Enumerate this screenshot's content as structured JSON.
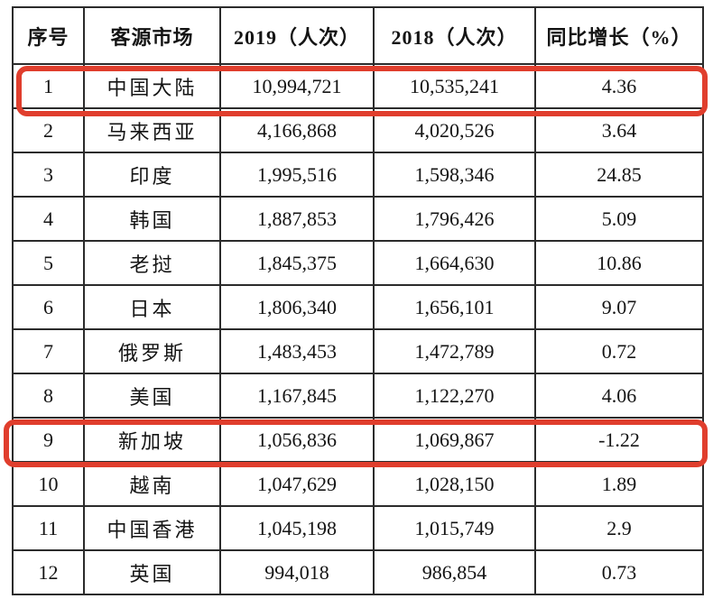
{
  "table": {
    "headers": [
      "序号",
      "客源市场",
      "2019（人次）",
      "2018（人次）",
      "同比增长（%）"
    ],
    "rows": [
      {
        "no": "1",
        "market": "中国大陆",
        "y2019": "10,994,721",
        "y2018": "10,535,241",
        "growth": "4.36",
        "highlighted": true
      },
      {
        "no": "2",
        "market": "马来西亚",
        "y2019": "4,166,868",
        "y2018": "4,020,526",
        "growth": "3.64",
        "highlighted": false
      },
      {
        "no": "3",
        "market": "印度",
        "y2019": "1,995,516",
        "y2018": "1,598,346",
        "growth": "24.85",
        "highlighted": false
      },
      {
        "no": "4",
        "market": "韩国",
        "y2019": "1,887,853",
        "y2018": "1,796,426",
        "growth": "5.09",
        "highlighted": false
      },
      {
        "no": "5",
        "market": "老挝",
        "y2019": "1,845,375",
        "y2018": "1,664,630",
        "growth": "10.86",
        "highlighted": false
      },
      {
        "no": "6",
        "market": "日本",
        "y2019": "1,806,340",
        "y2018": "1,656,101",
        "growth": "9.07",
        "highlighted": false
      },
      {
        "no": "7",
        "market": "俄罗斯",
        "y2019": "1,483,453",
        "y2018": "1,472,789",
        "growth": "0.72",
        "highlighted": false
      },
      {
        "no": "8",
        "market": "美国",
        "y2019": "1,167,845",
        "y2018": "1,122,270",
        "growth": "4.06",
        "highlighted": false
      },
      {
        "no": "9",
        "market": "新加坡",
        "y2019": "1,056,836",
        "y2018": "1,069,867",
        "growth": "-1.22",
        "highlighted": true
      },
      {
        "no": "10",
        "market": "越南",
        "y2019": "1,047,629",
        "y2018": "1,028,150",
        "growth": "1.89",
        "highlighted": false
      },
      {
        "no": "11",
        "market": "中国香港",
        "y2019": "1,045,198",
        "y2018": "1,015,749",
        "growth": "2.9",
        "highlighted": false
      },
      {
        "no": "12",
        "market": "英国",
        "y2019": "994,018",
        "y2018": "986,854",
        "growth": "0.73",
        "highlighted": false
      }
    ]
  },
  "annotation": {
    "highlight_color": "#e03e2d",
    "highlighted_rows": [
      "1",
      "9"
    ]
  },
  "colors": {
    "border": "#2b2b2b",
    "text": "#141414",
    "background": "#ffffff"
  }
}
